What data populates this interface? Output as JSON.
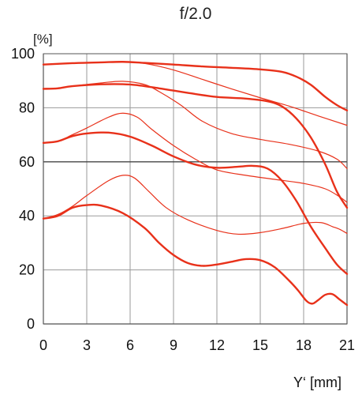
{
  "chart_data": {
    "type": "line",
    "title": "f/2.0",
    "ylabel": "[%]",
    "xlabel": "Y‘ [mm]",
    "xlim": [
      0,
      21
    ],
    "ylim": [
      0,
      100
    ],
    "x_ticks": [
      0,
      3,
      6,
      9,
      12,
      15,
      18,
      21
    ],
    "y_ticks": [
      0,
      20,
      40,
      60,
      80,
      100
    ],
    "x_tick_labels": [
      "0",
      "3",
      "6",
      "9",
      "12",
      "15",
      "18",
      "21"
    ],
    "y_tick_labels": [
      "0",
      "20",
      "40",
      "60",
      "80",
      "100"
    ],
    "grid": true,
    "legend": "none",
    "color": "#e8311a",
    "series": [
      {
        "weight": "thick",
        "points": [
          [
            0,
            96
          ],
          [
            2,
            96.5
          ],
          [
            4,
            96.8
          ],
          [
            5.5,
            97
          ],
          [
            7,
            96.6
          ],
          [
            9,
            96
          ],
          [
            11,
            95.3
          ],
          [
            13,
            94.8
          ],
          [
            15,
            94.2
          ],
          [
            16.5,
            93.3
          ],
          [
            17.5,
            91.5
          ],
          [
            18.5,
            88.5
          ],
          [
            19.5,
            84
          ],
          [
            20.3,
            81
          ],
          [
            21,
            79
          ]
        ]
      },
      {
        "weight": "thin",
        "points": [
          [
            0,
            96
          ],
          [
            2,
            96.5
          ],
          [
            4,
            96.8
          ],
          [
            5.5,
            97
          ],
          [
            7,
            96.4
          ],
          [
            9,
            94
          ],
          [
            11,
            90.5
          ],
          [
            13,
            87
          ],
          [
            15,
            83.7
          ],
          [
            17,
            80.6
          ],
          [
            19,
            77
          ],
          [
            21,
            73.5
          ]
        ]
      },
      {
        "weight": "thick",
        "points": [
          [
            0,
            87
          ],
          [
            1,
            87.2
          ],
          [
            2,
            88
          ],
          [
            4,
            88.7
          ],
          [
            6,
            88.6
          ],
          [
            8,
            87.2
          ],
          [
            10,
            85.5
          ],
          [
            12,
            84
          ],
          [
            14,
            83.4
          ],
          [
            15.5,
            82.4
          ],
          [
            16.5,
            80.5
          ],
          [
            17.5,
            76
          ],
          [
            18.5,
            69
          ],
          [
            19.5,
            59
          ],
          [
            20.3,
            49
          ],
          [
            21,
            43
          ]
        ]
      },
      {
        "weight": "thin",
        "points": [
          [
            0,
            87
          ],
          [
            1,
            87.2
          ],
          [
            2,
            88
          ],
          [
            4,
            89.2
          ],
          [
            5.5,
            89.8
          ],
          [
            7,
            88.6
          ],
          [
            8,
            86
          ],
          [
            9.5,
            81
          ],
          [
            11,
            75
          ],
          [
            13,
            70.5
          ],
          [
            15,
            68.3
          ],
          [
            17,
            66.5
          ],
          [
            19,
            64
          ],
          [
            20.3,
            61
          ],
          [
            21,
            57.5
          ]
        ]
      },
      {
        "weight": "thick",
        "points": [
          [
            0,
            67
          ],
          [
            1,
            67.6
          ],
          [
            2,
            69.5
          ],
          [
            3,
            70.5
          ],
          [
            4.5,
            70.8
          ],
          [
            6,
            69.3
          ],
          [
            7.5,
            66
          ],
          [
            9,
            62
          ],
          [
            10.5,
            59
          ],
          [
            12,
            57.8
          ],
          [
            13.5,
            58.2
          ],
          [
            14.5,
            58.5
          ],
          [
            15.5,
            57.5
          ],
          [
            16.5,
            53
          ],
          [
            17.5,
            45.5
          ],
          [
            18.5,
            36
          ],
          [
            19.5,
            28
          ],
          [
            20.3,
            22
          ],
          [
            21,
            18.5
          ]
        ]
      },
      {
        "weight": "thin",
        "points": [
          [
            0,
            67
          ],
          [
            1,
            67.6
          ],
          [
            2,
            70
          ],
          [
            3,
            72.5
          ],
          [
            4.5,
            76.5
          ],
          [
            5.5,
            78
          ],
          [
            6.5,
            76.5
          ],
          [
            7.5,
            72
          ],
          [
            9,
            66
          ],
          [
            10.5,
            61
          ],
          [
            12,
            57
          ],
          [
            14,
            55
          ],
          [
            16,
            53.5
          ],
          [
            18,
            52
          ],
          [
            19.5,
            50
          ],
          [
            20.5,
            47
          ],
          [
            21,
            45
          ]
        ]
      },
      {
        "weight": "thick",
        "points": [
          [
            0,
            39
          ],
          [
            1,
            40
          ],
          [
            2,
            43
          ],
          [
            3,
            44
          ],
          [
            4,
            43.8
          ],
          [
            5.5,
            41
          ],
          [
            7,
            35.5
          ],
          [
            8,
            30
          ],
          [
            9,
            25.5
          ],
          [
            10,
            22.5
          ],
          [
            11,
            21.5
          ],
          [
            12,
            22
          ],
          [
            13,
            23
          ],
          [
            14,
            24
          ],
          [
            15,
            23.6
          ],
          [
            16,
            21
          ],
          [
            17,
            16
          ],
          [
            17.6,
            12.5
          ],
          [
            18.2,
            8.5
          ],
          [
            18.6,
            7.5
          ],
          [
            19,
            8.8
          ],
          [
            19.5,
            10.8
          ],
          [
            20,
            11
          ],
          [
            20.5,
            9
          ],
          [
            21,
            7
          ]
        ]
      },
      {
        "weight": "thin",
        "points": [
          [
            0,
            39
          ],
          [
            1,
            40.5
          ],
          [
            2,
            43.5
          ],
          [
            3,
            47.5
          ],
          [
            4.5,
            53
          ],
          [
            5.5,
            55
          ],
          [
            6.3,
            54
          ],
          [
            7.3,
            49
          ],
          [
            8.5,
            43
          ],
          [
            10,
            38.5
          ],
          [
            12,
            34.6
          ],
          [
            13.5,
            33.2
          ],
          [
            15,
            33.8
          ],
          [
            16.5,
            35.3
          ],
          [
            18,
            37.2
          ],
          [
            19.2,
            37.5
          ],
          [
            20,
            36
          ],
          [
            20.5,
            35
          ],
          [
            21,
            33.5
          ]
        ]
      }
    ]
  }
}
